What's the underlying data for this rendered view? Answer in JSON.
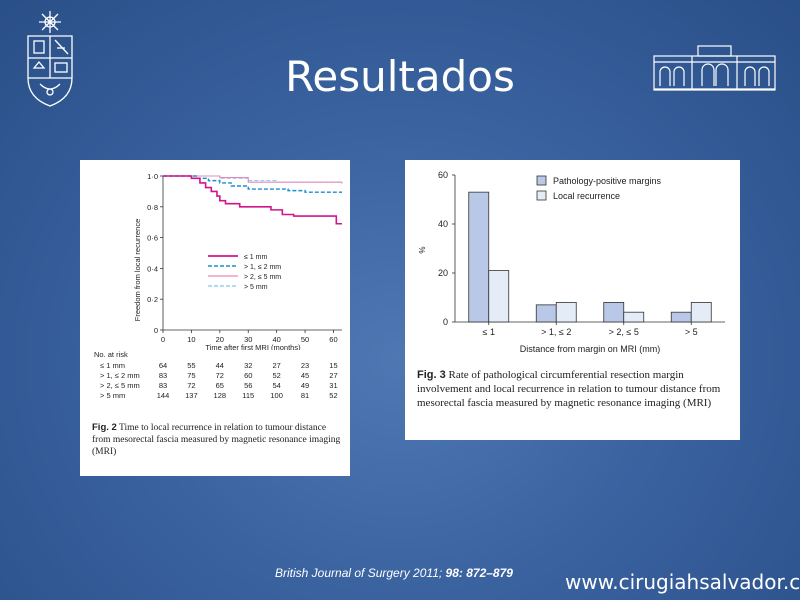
{
  "slide": {
    "title": "Resultados",
    "source_journal": "British Journal of Surgery 2011;",
    "source_ref": "98: 872–879",
    "website": "www.cirugiahsalvador.cl"
  },
  "colors": {
    "background": "#3a63a0",
    "le1": "#d4148c",
    "gt1le2": "#1a8fd0",
    "gt2le5": "#e88ab8",
    "gt5": "#7fc7ee",
    "bar_pathology": "#b8c8e6",
    "bar_local": "#e4ecf8"
  },
  "chart_data": [
    {
      "type": "line",
      "title": "",
      "xlabel": "Time after first MRI (months)",
      "ylabel": "Freedom from local recurrence",
      "xlim": [
        0,
        63
      ],
      "ylim": [
        0,
        1.0
      ],
      "xticks": [
        0,
        10,
        20,
        30,
        40,
        50,
        60
      ],
      "yticks": [
        "0",
        "0·2",
        "0·4",
        "0·6",
        "0·8",
        "1·0"
      ],
      "legend_position": "center-right",
      "series": [
        {
          "name": "≤ 1 mm",
          "style": "solid",
          "points": [
            [
              0,
              1.0
            ],
            [
              8,
              1.0
            ],
            [
              10,
              0.985
            ],
            [
              13,
              0.955
            ],
            [
              15,
              0.925
            ],
            [
              17,
              0.9
            ],
            [
              19,
              0.87
            ],
            [
              20,
              0.84
            ],
            [
              22,
              0.82
            ],
            [
              27,
              0.8
            ],
            [
              38,
              0.78
            ],
            [
              42,
              0.75
            ],
            [
              46,
              0.74
            ],
            [
              60,
              0.74
            ],
            [
              61,
              0.69
            ],
            [
              63,
              0.69
            ]
          ]
        },
        {
          "name": "> 1, ≤ 2 mm",
          "style": "dashed",
          "points": [
            [
              0,
              1.0
            ],
            [
              12,
              0.985
            ],
            [
              16,
              0.97
            ],
            [
              20,
              0.955
            ],
            [
              24,
              0.935
            ],
            [
              30,
              0.915
            ],
            [
              44,
              0.905
            ],
            [
              50,
              0.895
            ],
            [
              63,
              0.895
            ]
          ]
        },
        {
          "name": "> 2, ≤ 5 mm",
          "style": "solid",
          "points": [
            [
              0,
              1.0
            ],
            [
              20,
              0.99
            ],
            [
              30,
              0.96
            ],
            [
              63,
              0.955
            ]
          ]
        },
        {
          "name": "> 5 mm",
          "style": "dashed",
          "points": [
            [
              0,
              1.0
            ],
            [
              20,
              0.985
            ],
            [
              30,
              0.97
            ],
            [
              40,
              0.96
            ],
            [
              63,
              0.95
            ]
          ]
        }
      ],
      "at_risk": {
        "label": "No. at risk",
        "rows": [
          {
            "label": "≤ 1 mm",
            "values": [
              64,
              55,
              44,
              32,
              27,
              23,
              15
            ]
          },
          {
            "label": "> 1, ≤ 2 mm",
            "values": [
              83,
              75,
              72,
              60,
              52,
              45,
              27
            ]
          },
          {
            "label": "> 2, ≤ 5 mm",
            "values": [
              83,
              72,
              65,
              56,
              54,
              49,
              31
            ]
          },
          {
            "label": "> 5 mm",
            "values": [
              144,
              137,
              128,
              115,
              100,
              81,
              52
            ]
          }
        ]
      },
      "caption_label": "Fig. 2",
      "caption_text": "Time to local recurrence in relation to tumour distance from mesorectal fascia measured by magnetic resonance imaging (MRI)"
    },
    {
      "type": "bar",
      "title": "",
      "categories": [
        "≤ 1",
        "> 1, ≤ 2",
        "> 2, ≤ 5",
        "> 5"
      ],
      "series": [
        {
          "name": "Pathology-positive margins",
          "values": [
            53,
            7,
            8,
            4
          ]
        },
        {
          "name": "Local recurrence",
          "values": [
            21,
            8,
            4,
            8
          ]
        }
      ],
      "xlabel": "Distance from margin on MRI (mm)",
      "ylabel": "%",
      "ylim": [
        0,
        60
      ],
      "yticks": [
        "0",
        "20",
        "40",
        "60"
      ],
      "legend_position": "top",
      "caption_label": "Fig. 3",
      "caption_text": "Rate of pathological circumferential resection margin involvement and local recurrence in relation to tumour distance from mesorectal fascia measured by magnetic resonance imaging (MRI)"
    }
  ]
}
